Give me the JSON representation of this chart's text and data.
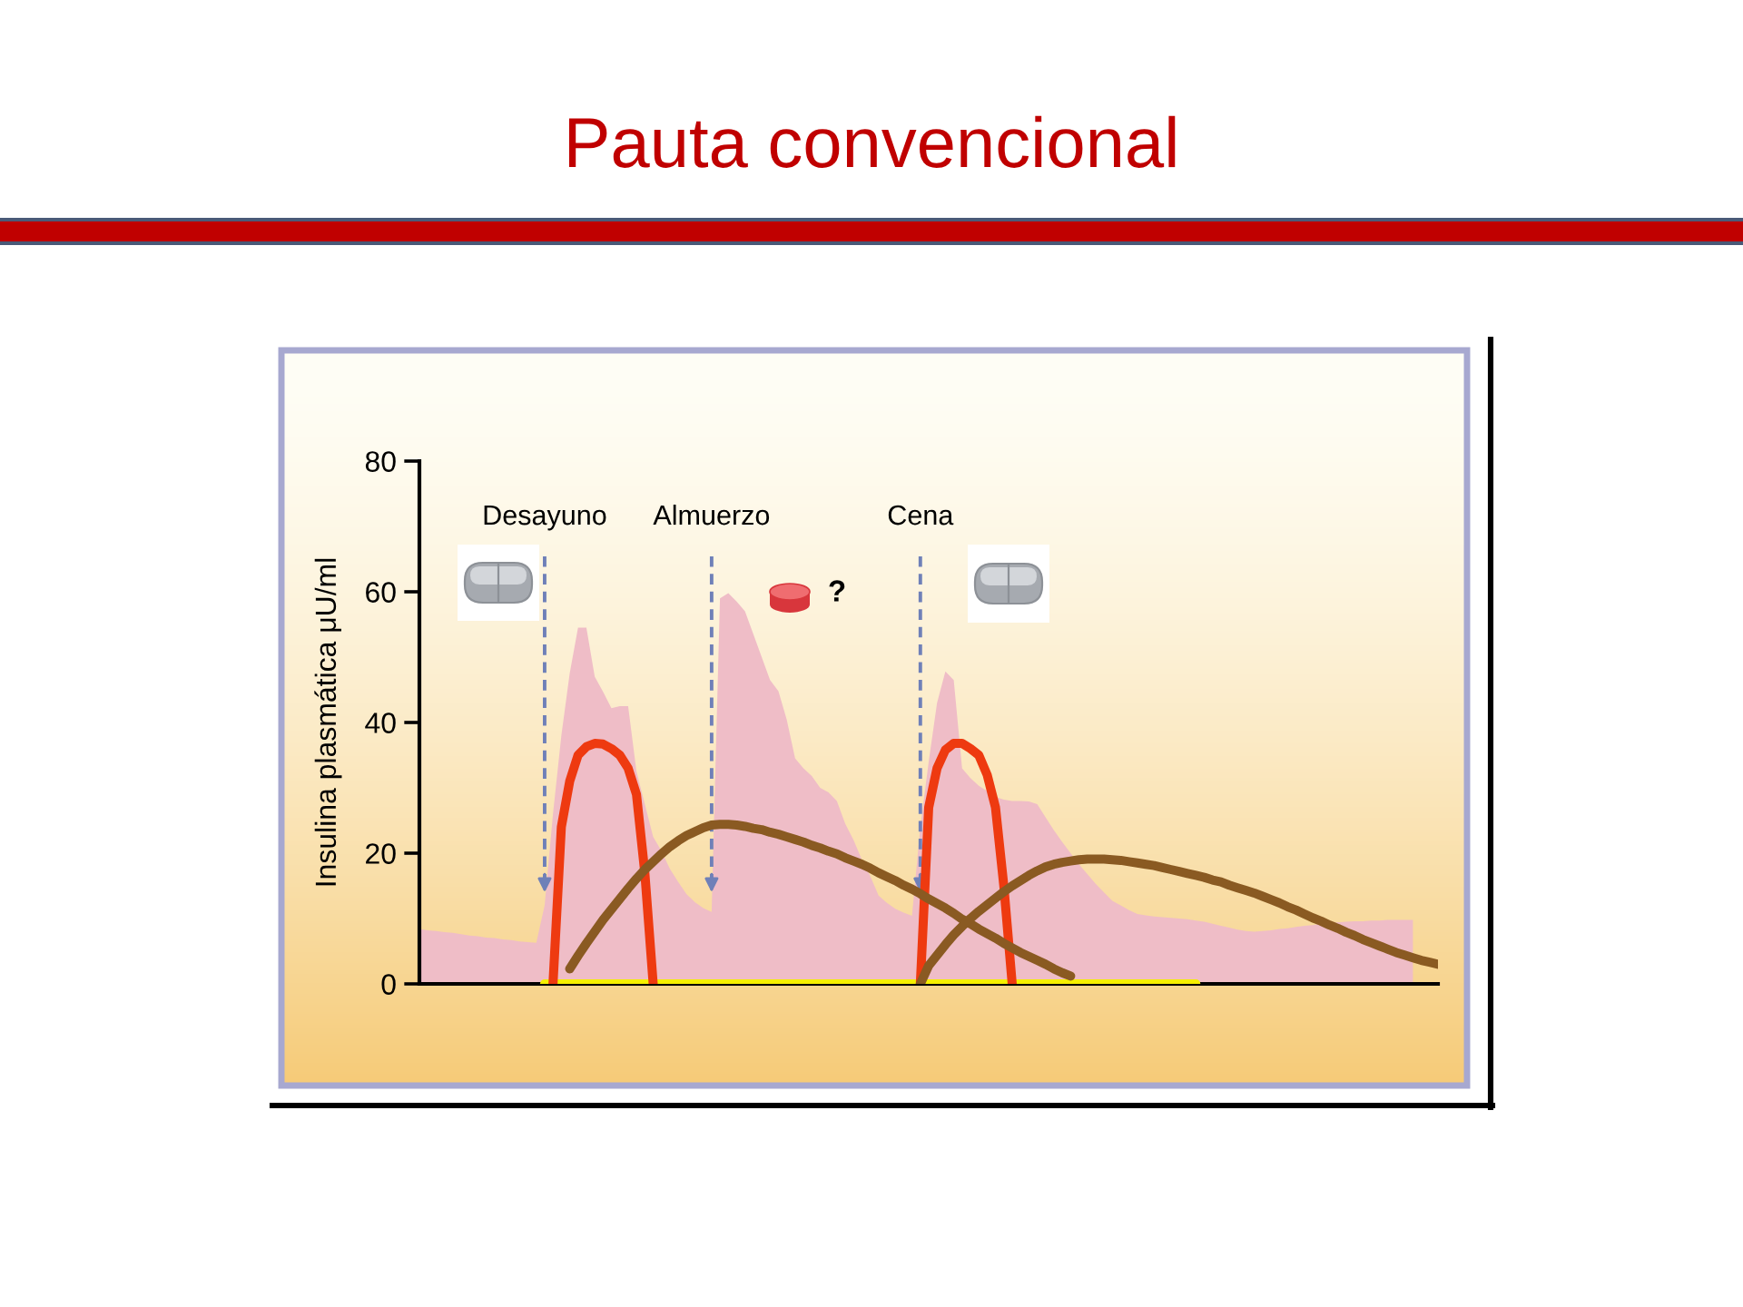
{
  "chart_data": {
    "type": "line",
    "title": "Pauta convencional",
    "ylabel": "Insulina plasmática μU/ml",
    "categories": [
      null,
      null,
      null,
      null,
      null,
      null,
      null,
      null,
      null,
      null,
      null,
      null,
      null,
      null,
      null,
      "Desayuno",
      null,
      null,
      null,
      null,
      null,
      null,
      null,
      null,
      null,
      null,
      null,
      null,
      null,
      null,
      null,
      null,
      null,
      null,
      null,
      "Almuerzo",
      null,
      null,
      null,
      null,
      null,
      null,
      null,
      null,
      null,
      null,
      null,
      null,
      null,
      null,
      null,
      null,
      null,
      null,
      null,
      null,
      null,
      null,
      null,
      null,
      "Cena",
      null,
      null,
      null,
      null,
      null,
      null,
      null,
      null,
      null,
      null,
      null,
      null,
      null,
      null,
      null,
      null,
      null,
      null,
      null,
      null,
      null,
      null,
      null,
      null,
      null,
      null,
      null,
      null,
      null,
      null,
      null,
      null,
      null,
      null,
      null,
      null,
      null,
      null,
      null,
      null,
      null,
      null,
      null,
      null,
      null,
      null,
      null,
      null,
      null,
      null,
      null,
      null,
      null,
      null,
      null,
      null,
      null,
      null,
      null,
      null,
      null,
      null
    ],
    "ylim": [
      0,
      80
    ],
    "yticks": [
      0,
      20,
      40,
      60,
      80
    ],
    "series": [
      {
        "type": "area",
        "color": "#efbdc7",
        "values": [
          8.4,
          8.2,
          8.1,
          7.9,
          7.8,
          7.6,
          7.4,
          7.3,
          7.1,
          7.0,
          6.8,
          6.7,
          6.5,
          6.4,
          6.3,
          12,
          26,
          38,
          47.5,
          54.5,
          54.5,
          47,
          44.7,
          42.2,
          42.5,
          42.5,
          32.5,
          27.5,
          22.5,
          20.3,
          17.6,
          15.6,
          13.7,
          12.5,
          11.6,
          11,
          59,
          59.8,
          58.5,
          57,
          53.5,
          50,
          46.5,
          44.8,
          40.4,
          34.5,
          33,
          31.8,
          30,
          29.3,
          28,
          24.5,
          22,
          19,
          16.5,
          13.5,
          12.4,
          11.5,
          10.9,
          10.4,
          24,
          34,
          43,
          47.8,
          46.5,
          33,
          31.5,
          30.3,
          29.5,
          28.6,
          28.2,
          28,
          28,
          27.9,
          27.5,
          25.5,
          23.5,
          21.7,
          20,
          18.3,
          16.8,
          15.3,
          14,
          12.7,
          12,
          11.3,
          10.7,
          10.5,
          10.3,
          10.2,
          10.1,
          10,
          9.9,
          9.7,
          9.5,
          9.2,
          8.9,
          8.6,
          8.3,
          8.1,
          8,
          8.1,
          8.2,
          8.4,
          8.5,
          8.7,
          8.9,
          9,
          9.2,
          9.3,
          9.4,
          9.5,
          9.6,
          9.6,
          9.7,
          9.7,
          9.8,
          9.8,
          9.8,
          9.8,
          null,
          null,
          null
        ]
      },
      {
        "color": "#f5ef00",
        "values": [
          null,
          null,
          null,
          null,
          null,
          null,
          null,
          null,
          null,
          null,
          null,
          null,
          null,
          null,
          null,
          0,
          0,
          0,
          0,
          0,
          0,
          0,
          0,
          0,
          0,
          0,
          0,
          0,
          0,
          0,
          0,
          0,
          0,
          0,
          0,
          0,
          0,
          0,
          0,
          0,
          0,
          0,
          0,
          0,
          0,
          0,
          0,
          0,
          0,
          0,
          0,
          0,
          0,
          0,
          0,
          0,
          0,
          0,
          0,
          0,
          0,
          0,
          0,
          0,
          0,
          0,
          0,
          0,
          0,
          0,
          0,
          0,
          0,
          0,
          0,
          0,
          0,
          0,
          0,
          0,
          0,
          0,
          0,
          0,
          0,
          0,
          0,
          0,
          0,
          0,
          0,
          0,
          0,
          0,
          null,
          null,
          null,
          null,
          null,
          null,
          null,
          null,
          null,
          null,
          null,
          null,
          null,
          null,
          null,
          null,
          null,
          null,
          null,
          null,
          null,
          null,
          null,
          null,
          null,
          null,
          null,
          null,
          null
        ]
      },
      {
        "color": "#ee3a10",
        "values": [
          null,
          null,
          null,
          null,
          null,
          null,
          null,
          null,
          null,
          null,
          null,
          null,
          null,
          null,
          null,
          null,
          0,
          24,
          31,
          35,
          36.3,
          36.8,
          36.7,
          36,
          35,
          33,
          29,
          17,
          0,
          null,
          null,
          null,
          null,
          null,
          null,
          null,
          null,
          null,
          null,
          null,
          null,
          null,
          null,
          null,
          null,
          null,
          null,
          null,
          null,
          null,
          null,
          null,
          null,
          null,
          null,
          null,
          null,
          null,
          null,
          null,
          null,
          null,
          null,
          null,
          null,
          null,
          null,
          null,
          null,
          null,
          null,
          null,
          null,
          null,
          null,
          null,
          null,
          null,
          null,
          null,
          null,
          null,
          null,
          null,
          null,
          null,
          null,
          null,
          null,
          null,
          null,
          null,
          null,
          null,
          null,
          null,
          null,
          null,
          null,
          null,
          null,
          null,
          null,
          null,
          null,
          null,
          null,
          null,
          null,
          null,
          null,
          null,
          null,
          null,
          null,
          null,
          null,
          null,
          null,
          null,
          null,
          null,
          null
        ]
      },
      {
        "color": "#ee3a10",
        "values": [
          null,
          null,
          null,
          null,
          null,
          null,
          null,
          null,
          null,
          null,
          null,
          null,
          null,
          null,
          null,
          null,
          null,
          null,
          null,
          null,
          null,
          null,
          null,
          null,
          null,
          null,
          null,
          null,
          null,
          null,
          null,
          null,
          null,
          null,
          null,
          null,
          null,
          null,
          null,
          null,
          null,
          null,
          null,
          null,
          null,
          null,
          null,
          null,
          null,
          null,
          null,
          null,
          null,
          null,
          null,
          null,
          null,
          null,
          null,
          null,
          0,
          27,
          33,
          35.8,
          36.8,
          36.8,
          36,
          35,
          32,
          27,
          15,
          0,
          null,
          null,
          null,
          null,
          null,
          null,
          null,
          null,
          null,
          null,
          null,
          null,
          null,
          null,
          null,
          null,
          null,
          null,
          null,
          null,
          null,
          null,
          null,
          null,
          null,
          null,
          null,
          null,
          null,
          null,
          null,
          null,
          null,
          null,
          null,
          null,
          null,
          null,
          null,
          null,
          null,
          null,
          null,
          null,
          null,
          null,
          null,
          null,
          null,
          null,
          null
        ]
      },
      {
        "color": "#8a5a22",
        "values": [
          null,
          null,
          null,
          null,
          null,
          null,
          null,
          null,
          null,
          null,
          null,
          null,
          null,
          null,
          null,
          null,
          null,
          null,
          2.3,
          4.3,
          6.2,
          8.0,
          9.8,
          11.4,
          13.0,
          14.6,
          16.1,
          17.5,
          18.7,
          19.9,
          21.0,
          21.9,
          22.7,
          23.3,
          23.9,
          24.3,
          24.4,
          24.4,
          24.3,
          24.1,
          23.8,
          23.6,
          23.2,
          22.9,
          22.5,
          22.1,
          21.7,
          21.2,
          20.8,
          20.3,
          19.9,
          19.3,
          18.8,
          18.3,
          17.7,
          17.0,
          16.4,
          15.8,
          15.1,
          14.5,
          13.8,
          13.0,
          12.3,
          11.6,
          10.8,
          9.9,
          9.2,
          8.4,
          7.7,
          7.0,
          6.2,
          5.5,
          4.8,
          4.2,
          3.6,
          3.0,
          2.3,
          1.7,
          1.2,
          null,
          null,
          null,
          null,
          null,
          null,
          null,
          null,
          null,
          null,
          null,
          null,
          null,
          null,
          null,
          null,
          null,
          null,
          null,
          null,
          null,
          null,
          null,
          null,
          null,
          null,
          null,
          null,
          null,
          null,
          null,
          null,
          null,
          null,
          null,
          null,
          null,
          null,
          null,
          null,
          null,
          null,
          null,
          null
        ]
      },
      {
        "color": "#8a5a22",
        "values": [
          null,
          null,
          null,
          null,
          null,
          null,
          null,
          null,
          null,
          null,
          null,
          null,
          null,
          null,
          null,
          null,
          null,
          null,
          null,
          null,
          null,
          null,
          null,
          null,
          null,
          null,
          null,
          null,
          null,
          null,
          null,
          null,
          null,
          null,
          null,
          null,
          null,
          null,
          null,
          null,
          null,
          null,
          null,
          null,
          null,
          null,
          null,
          null,
          null,
          null,
          null,
          null,
          null,
          null,
          null,
          null,
          null,
          null,
          null,
          null,
          0,
          2.8,
          4.4,
          6.0,
          7.5,
          8.8,
          10.0,
          11.1,
          12.1,
          13.1,
          14.1,
          15.0,
          15.8,
          16.6,
          17.3,
          17.9,
          18.3,
          18.6,
          18.8,
          19.0,
          19.1,
          19.1,
          19.1,
          19.0,
          18.9,
          18.7,
          18.5,
          18.3,
          18.1,
          17.8,
          17.5,
          17.2,
          16.9,
          16.6,
          16.3,
          15.9,
          15.6,
          15.1,
          14.7,
          14.3,
          13.9,
          13.4,
          12.9,
          12.4,
          11.8,
          11.3,
          10.7,
          10.1,
          9.6,
          9.0,
          8.5,
          7.9,
          7.4,
          6.8,
          6.3,
          5.8,
          5.3,
          4.8,
          4.4,
          4.0,
          3.6,
          3.3,
          3.0
        ]
      }
    ],
    "ref_lines": [
      {
        "axis": "x",
        "value": "Desayuno",
        "color": "#6f80b8",
        "line_style": "dashed"
      },
      {
        "axis": "x",
        "value": "Almuerzo",
        "color": "#6f80b8",
        "line_style": "dashed"
      },
      {
        "axis": "x",
        "value": "Cena",
        "color": "#6f80b8",
        "line_style": "dashed"
      }
    ],
    "annotations": [
      "?"
    ]
  }
}
